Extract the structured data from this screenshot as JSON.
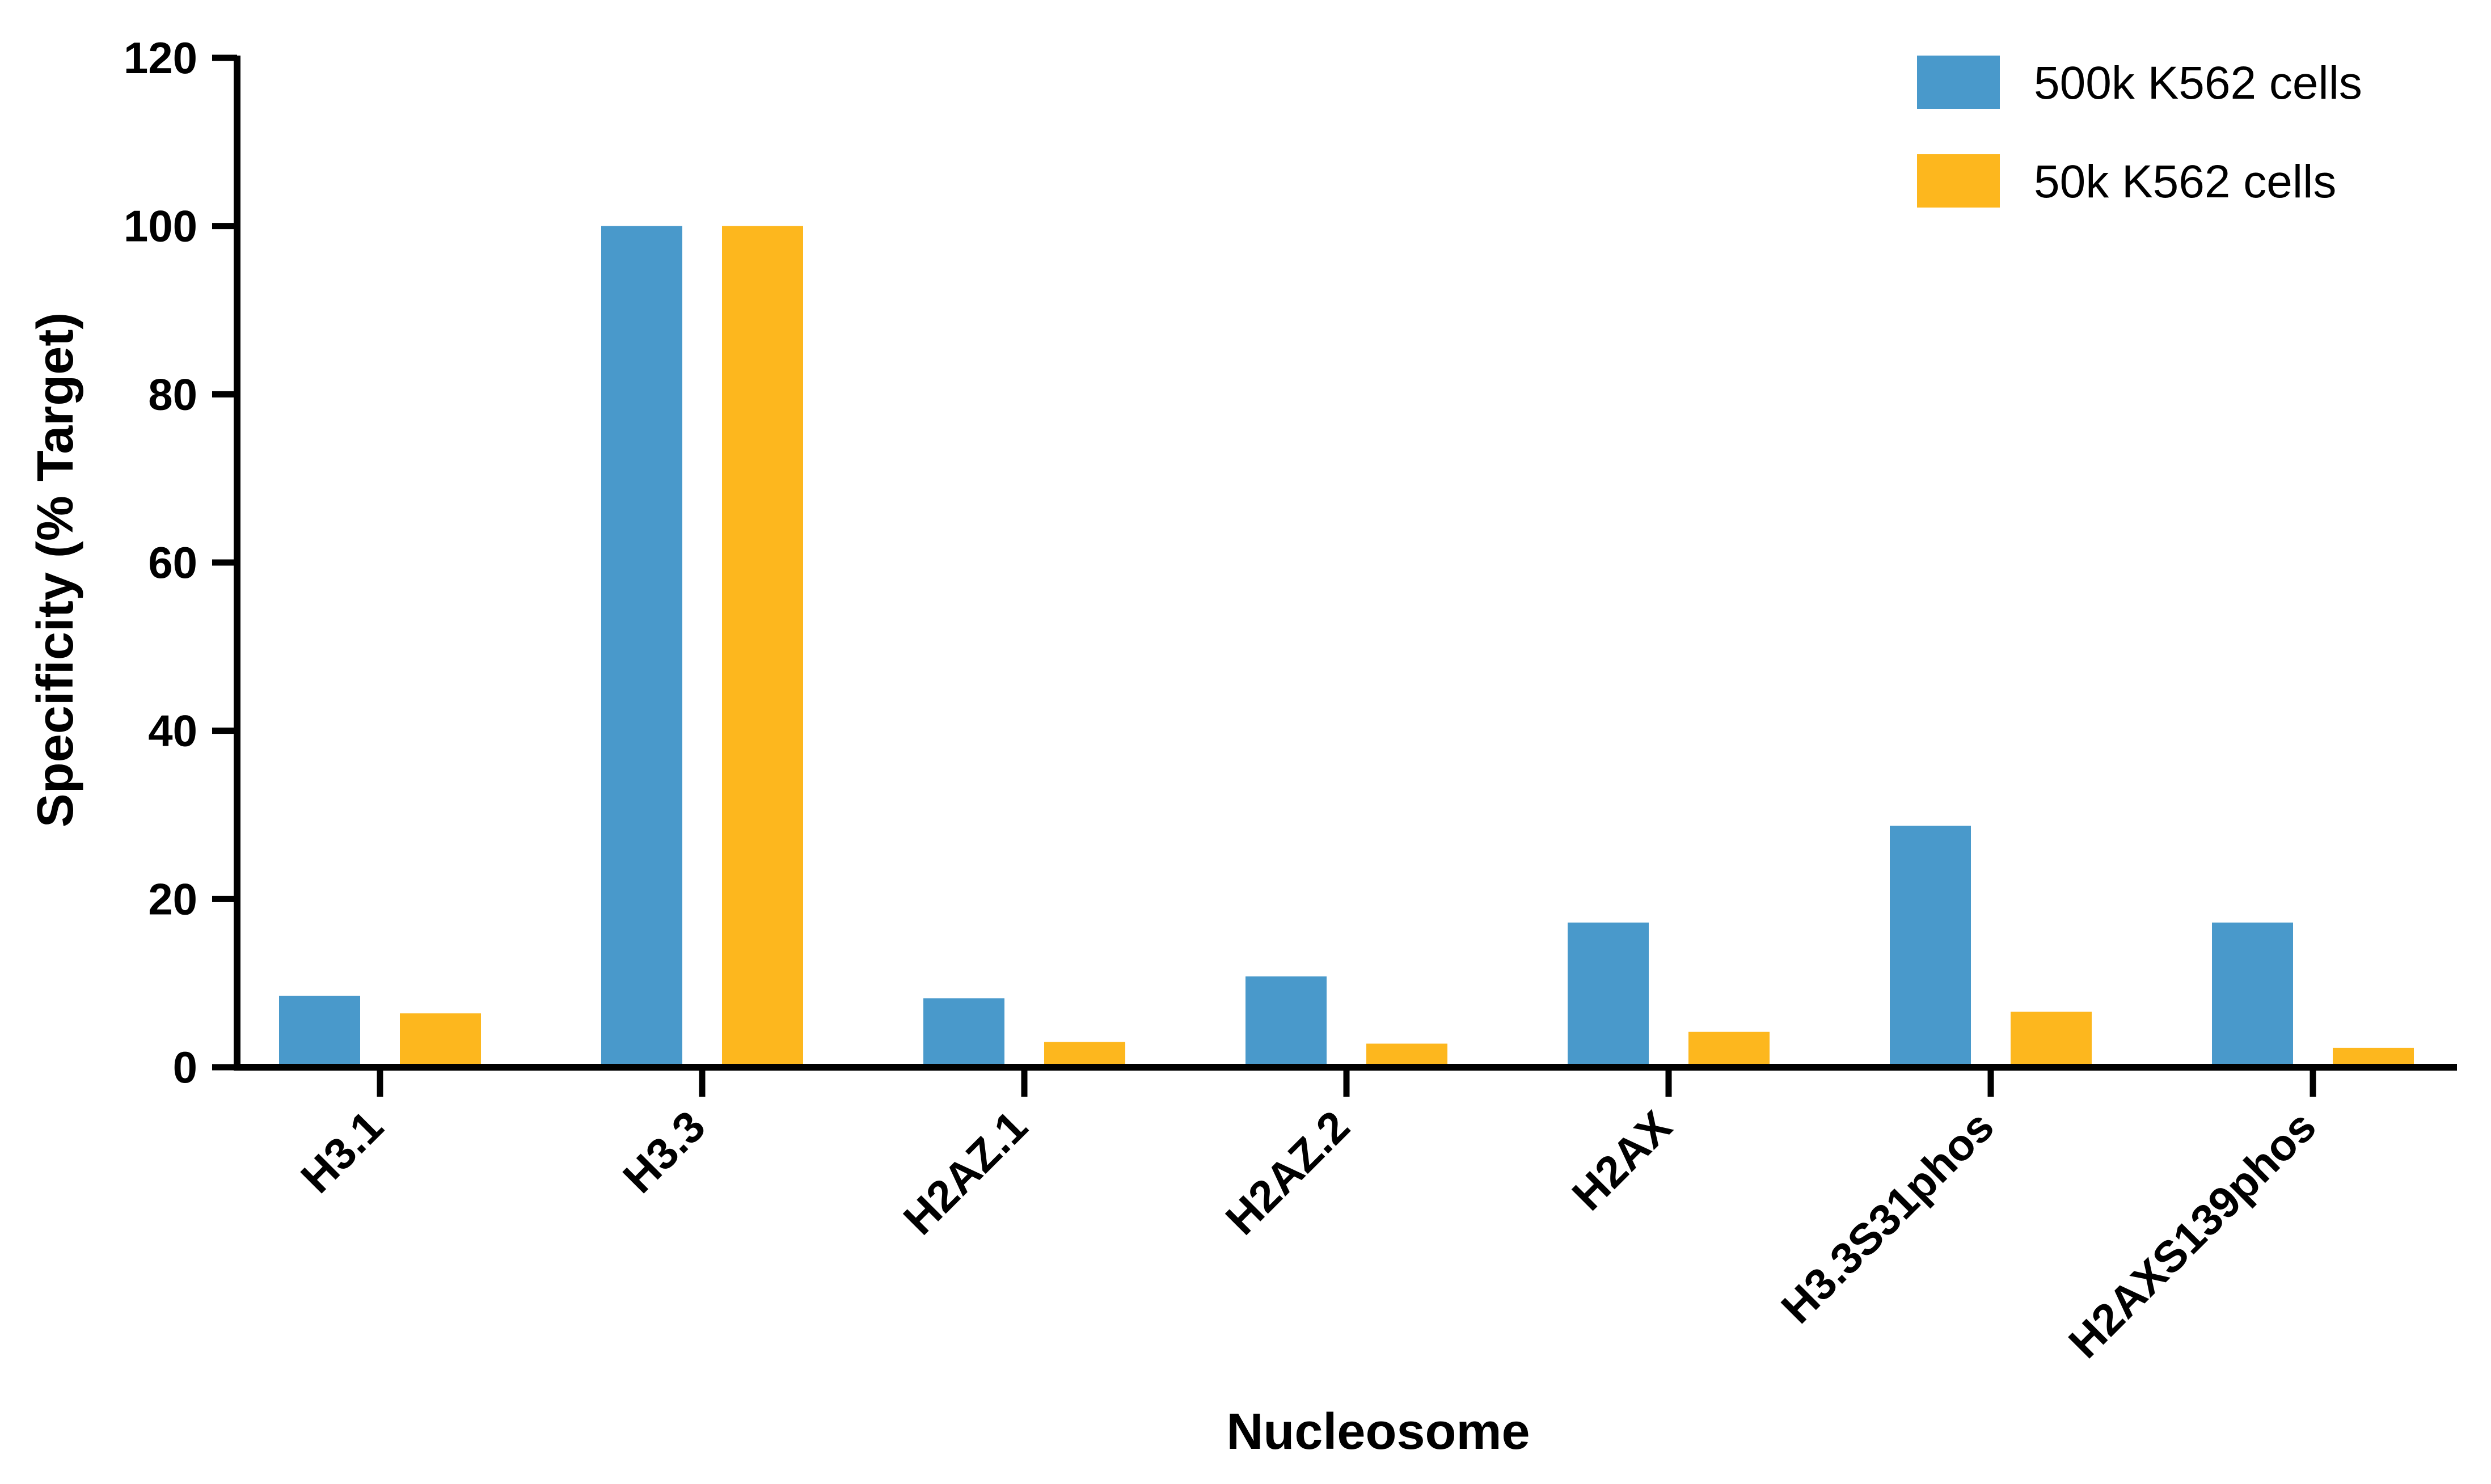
{
  "chart_data": {
    "type": "bar",
    "xlabel": "Nucleosome",
    "ylabel": "Specificity (% Target)",
    "ylim": [
      0,
      120
    ],
    "yticks": [
      0,
      20,
      40,
      60,
      80,
      100,
      120
    ],
    "grid": false,
    "legend_position": "top-right",
    "categories": [
      "H3.1",
      "H3.3",
      "H2AZ.1",
      "H2AZ.2",
      "H2AX",
      "H3.3S31phos",
      "H2AXS139phos"
    ],
    "series": [
      {
        "name": "500k K562 cells",
        "color": "#4999CB",
        "values": [
          8.5,
          100,
          8.2,
          10.8,
          17.2,
          28.7,
          17.2
        ]
      },
      {
        "name": "50k K562 cells",
        "color": "#FDB71E",
        "values": [
          6.4,
          100,
          3.0,
          2.8,
          4.2,
          6.6,
          2.3
        ]
      }
    ]
  }
}
